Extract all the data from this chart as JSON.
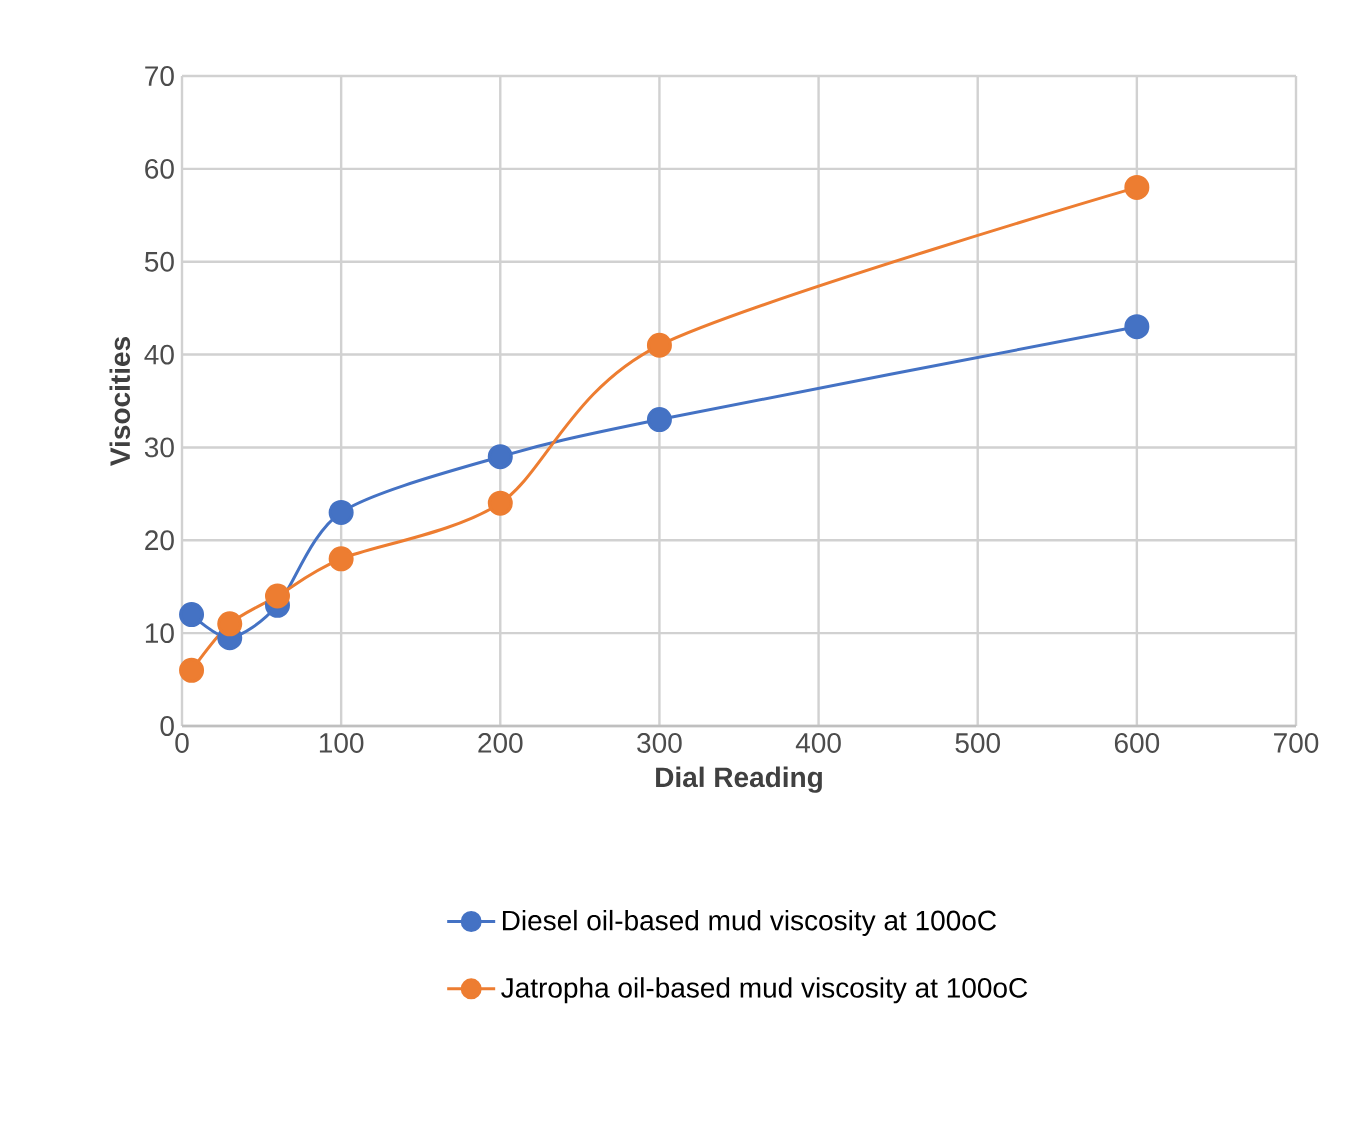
{
  "chart_data": {
    "type": "line",
    "xlabel": "Dial Reading",
    "ylabel": "Visocities",
    "x": [
      6,
      30,
      60,
      100,
      200,
      300,
      600
    ],
    "series": [
      {
        "name": "Diesel oil-based mud viscosity at 100oC",
        "color": "#4472c4",
        "values": [
          12,
          9.5,
          13,
          23,
          29,
          33,
          43
        ]
      },
      {
        "name": "Jatropha oil-based mud viscosity at 100oC",
        "color": "#ed7d31",
        "values": [
          6,
          11,
          14,
          18,
          24,
          41,
          58
        ]
      }
    ],
    "xlim": [
      0,
      700
    ],
    "xticks": [
      0,
      100,
      200,
      300,
      400,
      500,
      600,
      700
    ],
    "ylim": [
      0,
      70
    ],
    "yticks": [
      0,
      10,
      20,
      30,
      40,
      50,
      60,
      70
    ],
    "grid": true,
    "legend": "bottom",
    "marker": "circle",
    "line_style": "solid"
  }
}
